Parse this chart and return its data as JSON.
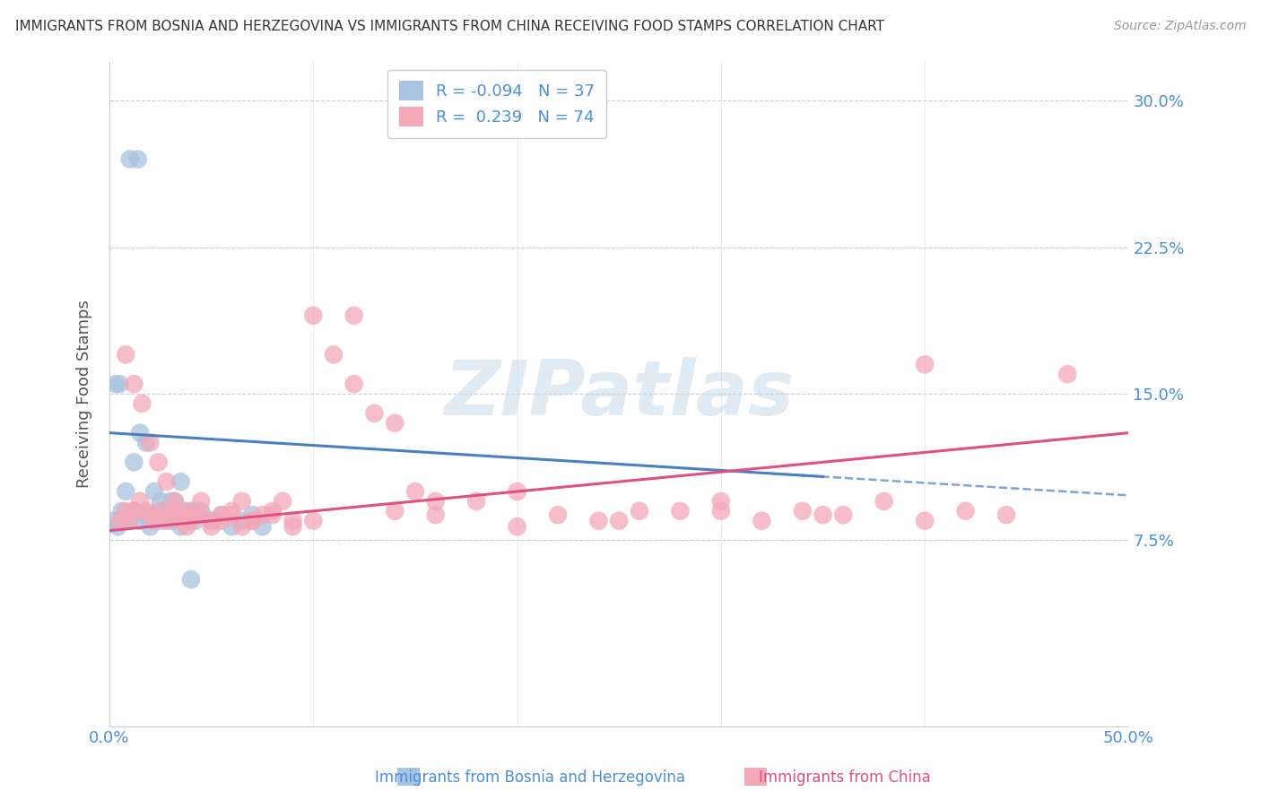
{
  "title": "IMMIGRANTS FROM BOSNIA AND HERZEGOVINA VS IMMIGRANTS FROM CHINA RECEIVING FOOD STAMPS CORRELATION CHART",
  "source": "Source: ZipAtlas.com",
  "ylabel": "Receiving Food Stamps",
  "yticks": [
    "7.5%",
    "15.0%",
    "22.5%",
    "30.0%"
  ],
  "ytick_values": [
    0.075,
    0.15,
    0.225,
    0.3
  ],
  "xlim": [
    0.0,
    0.5
  ],
  "ylim": [
    -0.02,
    0.32
  ],
  "legend_blue_r": "-0.094",
  "legend_blue_n": "37",
  "legend_pink_r": "0.239",
  "legend_pink_n": "74",
  "legend_labels": [
    "Immigrants from Bosnia and Herzegovina",
    "Immigrants from China"
  ],
  "blue_color": "#a8c4e0",
  "pink_color": "#f4a8b8",
  "blue_line_color": "#4a7fc1",
  "pink_line_color": "#e05080",
  "title_color": "#333333",
  "source_color": "#999999",
  "grid_color": "#cccccc",
  "background_color": "#ffffff",
  "watermark": "ZIPatlas",
  "blue_scatter_x": [
    0.01,
    0.014,
    0.003,
    0.005,
    0.008,
    0.012,
    0.015,
    0.018,
    0.022,
    0.025,
    0.028,
    0.03,
    0.032,
    0.035,
    0.038,
    0.04,
    0.042,
    0.045,
    0.05,
    0.055,
    0.06,
    0.065,
    0.07,
    0.075,
    0.002,
    0.004,
    0.006,
    0.008,
    0.01,
    0.012,
    0.015,
    0.018,
    0.02,
    0.025,
    0.03,
    0.035,
    0.04
  ],
  "blue_scatter_y": [
    0.27,
    0.27,
    0.155,
    0.155,
    0.1,
    0.115,
    0.13,
    0.125,
    0.1,
    0.095,
    0.09,
    0.095,
    0.095,
    0.105,
    0.09,
    0.09,
    0.085,
    0.09,
    0.085,
    0.088,
    0.082,
    0.085,
    0.088,
    0.082,
    0.085,
    0.082,
    0.09,
    0.085,
    0.088,
    0.09,
    0.085,
    0.088,
    0.082,
    0.085,
    0.085,
    0.082,
    0.055
  ],
  "pink_scatter_x": [
    0.005,
    0.008,
    0.01,
    0.012,
    0.015,
    0.018,
    0.02,
    0.022,
    0.025,
    0.028,
    0.03,
    0.032,
    0.035,
    0.038,
    0.04,
    0.042,
    0.045,
    0.05,
    0.055,
    0.06,
    0.065,
    0.07,
    0.075,
    0.08,
    0.085,
    0.09,
    0.1,
    0.11,
    0.12,
    0.13,
    0.14,
    0.15,
    0.16,
    0.18,
    0.2,
    0.22,
    0.24,
    0.26,
    0.28,
    0.3,
    0.32,
    0.34,
    0.36,
    0.38,
    0.4,
    0.42,
    0.44,
    0.47,
    0.008,
    0.012,
    0.016,
    0.02,
    0.024,
    0.028,
    0.032,
    0.036,
    0.04,
    0.045,
    0.05,
    0.055,
    0.06,
    0.065,
    0.07,
    0.08,
    0.09,
    0.1,
    0.12,
    0.14,
    0.16,
    0.2,
    0.25,
    0.3,
    0.35,
    0.4
  ],
  "pink_scatter_y": [
    0.085,
    0.09,
    0.085,
    0.09,
    0.095,
    0.09,
    0.088,
    0.085,
    0.09,
    0.085,
    0.088,
    0.09,
    0.085,
    0.082,
    0.088,
    0.09,
    0.095,
    0.085,
    0.088,
    0.09,
    0.095,
    0.085,
    0.088,
    0.09,
    0.095,
    0.085,
    0.19,
    0.17,
    0.155,
    0.14,
    0.135,
    0.1,
    0.095,
    0.095,
    0.1,
    0.088,
    0.085,
    0.09,
    0.09,
    0.095,
    0.085,
    0.09,
    0.088,
    0.095,
    0.085,
    0.09,
    0.088,
    0.16,
    0.17,
    0.155,
    0.145,
    0.125,
    0.115,
    0.105,
    0.095,
    0.09,
    0.085,
    0.088,
    0.082,
    0.085,
    0.088,
    0.082,
    0.085,
    0.088,
    0.082,
    0.085,
    0.19,
    0.09,
    0.088,
    0.082,
    0.085,
    0.09,
    0.088,
    0.165
  ]
}
